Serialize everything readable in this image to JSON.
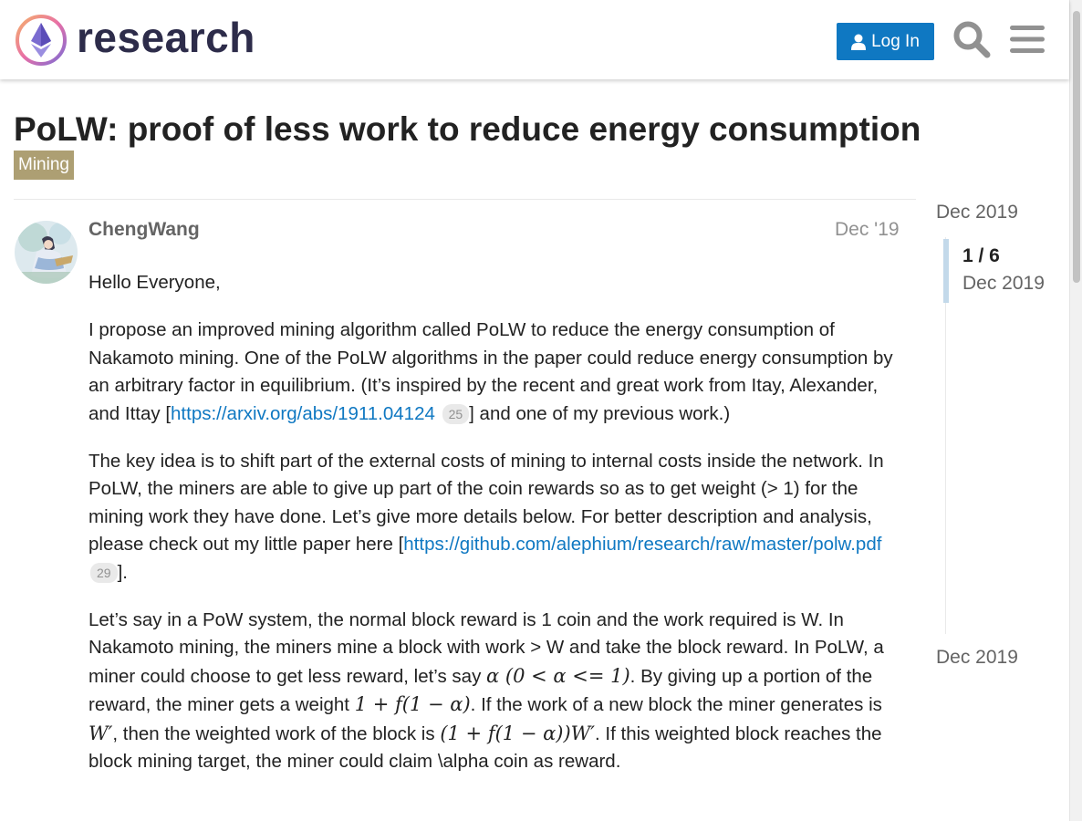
{
  "header": {
    "site_name": "research",
    "login_label": "Log In",
    "accent_color": "#0f78c2"
  },
  "topic": {
    "title": "PoLW: proof of less work to reduce energy consumption",
    "category": "Mining",
    "category_color": "#ad9f73"
  },
  "post": {
    "username": "ChengWang",
    "date": "Dec '19",
    "greeting": "Hello Everyone,",
    "p2_a": "I propose an improved mining algorithm called PoLW to reduce the energy consumption of Nakamoto mining. One of the PoLW algorithms in the paper could reduce energy consumption by an arbitrary factor in equilibrium. (It’s inspired by the recent and great work from Itay, Alexander, and Ittay [",
    "link1": "https://arxiv.org/abs/1911.04124",
    "link1_clicks": "25",
    "p2_b": "] and one of my previous work.)",
    "p3_a": "The key idea is to shift part of the external costs of mining to internal costs inside the network. In PoLW, the miners are able to give up part of the coin rewards so as to get weight (> 1) for the mining work they have done. Let’s give more details below. For better description and analysis, please check out my little paper here [",
    "link2": "https://github.com/alephium/research/raw/master/polw.pdf",
    "link2_clicks": "29",
    "p3_b": "].",
    "p4_a": "Let’s say in a PoW system, the normal block reward is 1 coin and the work required is W. In Nakamoto mining, the miners mine a block with work > W and take the block reward. In PoLW, a miner could choose to get less reward, let’s say ",
    "math1": "α (0 < α <= 1)",
    "p4_b": ". By giving up a portion of the reward, the miner gets a weight ",
    "math2": "1 + f(1 − α)",
    "p4_c": ". If the work of a new block the miner generates is ",
    "math3": "W′",
    "p4_d": ", then the weighted work of the block is ",
    "math4": "(1 + f(1 − α))W′",
    "p4_e": ". If this weighted block reaches the block mining target, the miner could claim \\alpha coin as reward."
  },
  "timeline": {
    "top_date": "Dec 2019",
    "position": "1 / 6",
    "current_date": "Dec 2019",
    "bottom_date": "Dec 2019"
  }
}
